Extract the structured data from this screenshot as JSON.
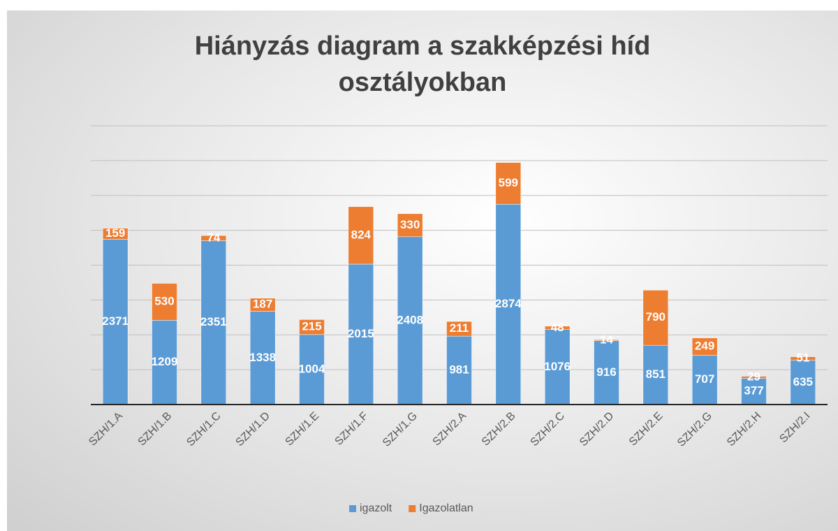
{
  "chart_data": {
    "type": "stacked_bar",
    "title": "Hiányzás diagram a szakképzési híd osztályokban",
    "categories": [
      "SZH/1.A",
      "SZH/1.B",
      "SZH/1.C",
      "SZH/1.D",
      "SZH/1.E",
      "SZH/1.F",
      "SZH/1.G",
      "SZH/2.A",
      "SZH/2.B",
      "SZH/2.C",
      "SZH/2.D",
      "SZH/2.E",
      "SZH/2.G",
      "SZH/2.H",
      "SZH/2.I"
    ],
    "series": [
      {
        "name": "igazolt",
        "color": "#5b9bd5",
        "values": [
          2371,
          1209,
          2351,
          1338,
          1004,
          2015,
          2408,
          981,
          2874,
          1076,
          916,
          851,
          707,
          377,
          635
        ]
      },
      {
        "name": "Igazolatlan",
        "color": "#ed7d31",
        "values": [
          159,
          530,
          74,
          187,
          215,
          824,
          330,
          211,
          599,
          48,
          14,
          790,
          249,
          29,
          51
        ]
      }
    ],
    "ylim": [
      0,
      4000
    ],
    "yticks": [
      0,
      500,
      1000,
      1500,
      2000,
      2500,
      3000,
      3500,
      4000
    ],
    "grid": true,
    "legend": "bottom"
  }
}
